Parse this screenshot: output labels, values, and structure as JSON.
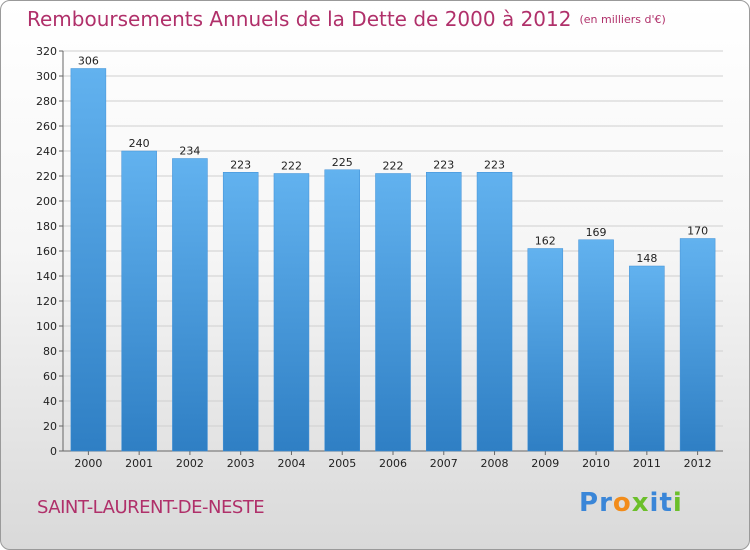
{
  "title": "Remboursements Annuels de la Dette de 2000 à 2012",
  "unit": "(en milliers d'€)",
  "commune": "SAINT-LAURENT-DE-NESTE",
  "logo": {
    "letters": [
      {
        "ch": "P",
        "color": "#3a86d8"
      },
      {
        "ch": "r",
        "color": "#3a86d8"
      },
      {
        "ch": "o",
        "color": "#f28c1a"
      },
      {
        "ch": "x",
        "color": "#6bbf2a"
      },
      {
        "ch": "i",
        "color": "#3a86d8"
      },
      {
        "ch": "t",
        "color": "#3a86d8"
      },
      {
        "ch": "i",
        "color": "#6bbf2a"
      }
    ]
  },
  "chart_data": {
    "type": "bar",
    "categories": [
      "2000",
      "2001",
      "2002",
      "2003",
      "2004",
      "2005",
      "2006",
      "2007",
      "2008",
      "2009",
      "2010",
      "2011",
      "2012"
    ],
    "values": [
      306,
      240,
      234,
      223,
      222,
      225,
      222,
      223,
      223,
      162,
      169,
      148,
      170
    ],
    "ylim": [
      0,
      320
    ],
    "yticks": [
      0,
      20,
      40,
      60,
      80,
      100,
      120,
      140,
      160,
      180,
      200,
      220,
      240,
      260,
      280,
      300,
      320
    ],
    "grid": true,
    "bar_color_top": "#62b2ef",
    "bar_color_bottom": "#2f7fc4"
  }
}
